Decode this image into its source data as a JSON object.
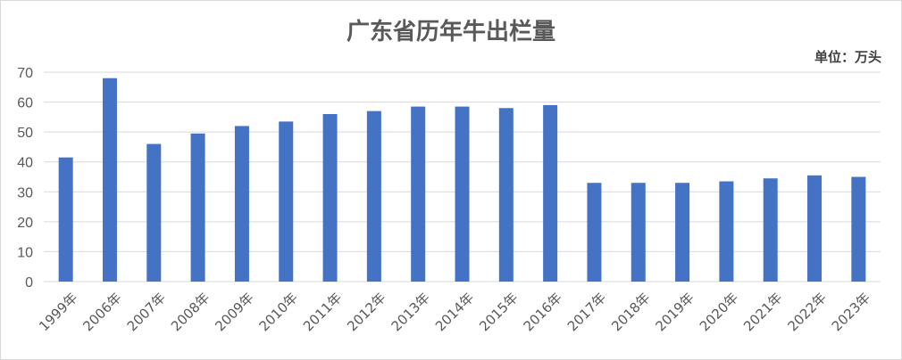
{
  "chart_data": {
    "type": "bar",
    "title": "广东省历年牛出栏量",
    "unit_label": "单位：万头",
    "categories": [
      "1999年",
      "2006年",
      "2007年",
      "2008年",
      "2009年",
      "2010年",
      "2011年",
      "2012年",
      "2013年",
      "2014年",
      "2015年",
      "2016年",
      "2017年",
      "2018年",
      "2019年",
      "2020年",
      "2021年",
      "2022年",
      "2023年"
    ],
    "values": [
      41.5,
      68,
      46,
      49.5,
      52,
      53.5,
      56,
      57,
      58.5,
      58.5,
      58,
      59,
      33,
      33,
      33,
      33.5,
      34.5,
      35.5,
      35
    ],
    "ylim": [
      0,
      70
    ],
    "yticks": [
      0,
      10,
      20,
      30,
      40,
      50,
      60,
      70
    ],
    "grid": true,
    "bar_color": "#4472c4",
    "grid_color": "#d9d9d9"
  }
}
